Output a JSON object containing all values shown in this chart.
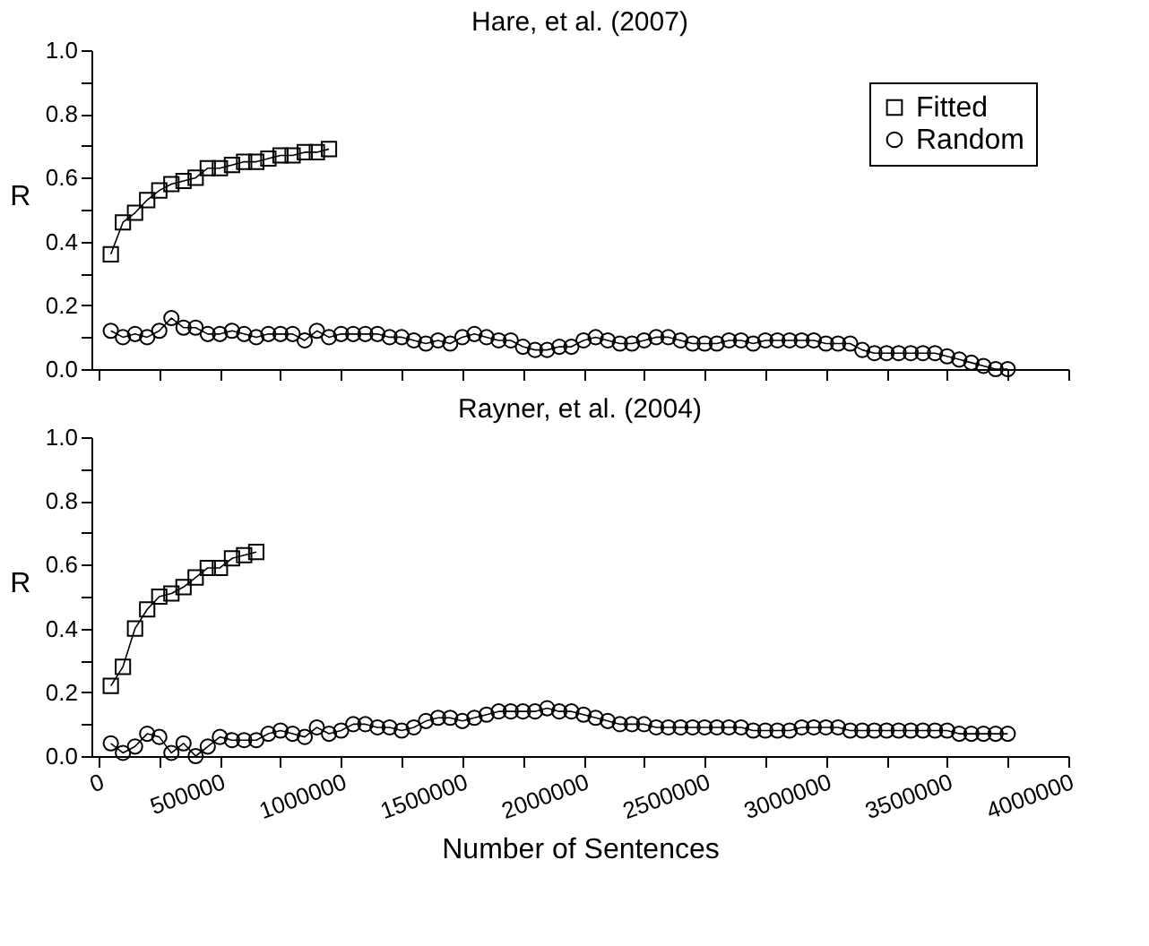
{
  "chart_data": [
    {
      "type": "line",
      "title": "Hare, et al. (2007)",
      "ylabel": "R",
      "tick_labels": "y",
      "legend": "top right",
      "grid": false,
      "line_style": "solid",
      "xlim": [
        -30000,
        4000000
      ],
      "xticks": [
        {
          "value": 0,
          "label": null
        },
        {
          "value": 250000,
          "label": null
        },
        {
          "value": 500000,
          "label": null
        },
        {
          "value": 750000,
          "label": null
        },
        {
          "value": 1000000,
          "label": null
        },
        {
          "value": 1250000,
          "label": null
        },
        {
          "value": 1500000,
          "label": null
        },
        {
          "value": 1750000,
          "label": null
        },
        {
          "value": 2000000,
          "label": null
        },
        {
          "value": 2250000,
          "label": null
        },
        {
          "value": 2500000,
          "label": null
        },
        {
          "value": 2750000,
          "label": null
        },
        {
          "value": 3000000,
          "label": null
        },
        {
          "value": 3250000,
          "label": null
        },
        {
          "value": 3500000,
          "label": null
        },
        {
          "value": 3750000,
          "label": null
        },
        {
          "value": 4000000,
          "label": null
        }
      ],
      "ylim": [
        0,
        1
      ],
      "yticks": [
        {
          "value": 0,
          "label": "0.0"
        },
        {
          "value": 0.1,
          "label": null
        },
        {
          "value": 0.2,
          "label": "0.2"
        },
        {
          "value": 0.3,
          "label": null
        },
        {
          "value": 0.4,
          "label": "0.4"
        },
        {
          "value": 0.5,
          "label": null
        },
        {
          "value": 0.6,
          "label": "0.6"
        },
        {
          "value": 0.7,
          "label": null
        },
        {
          "value": 0.8,
          "label": "0.8"
        },
        {
          "value": 0.9,
          "label": null
        },
        {
          "value": 1,
          "label": "1.0"
        }
      ],
      "series": [
        {
          "name": "Fitted",
          "color": "#000000",
          "marker": "square",
          "x": [
            50000,
            100000,
            150000,
            200000,
            250000,
            300000,
            350000,
            400000,
            450000,
            500000,
            550000,
            600000,
            650000,
            700000,
            750000,
            800000,
            850000,
            900000,
            950000
          ],
          "values": [
            0.36,
            0.46,
            0.49,
            0.53,
            0.56,
            0.58,
            0.59,
            0.6,
            0.63,
            0.63,
            0.64,
            0.65,
            0.65,
            0.66,
            0.67,
            0.67,
            0.68,
            0.68,
            0.69
          ]
        },
        {
          "name": "Random",
          "color": "#000000",
          "marker": "circle",
          "x": [
            50000,
            100000,
            150000,
            200000,
            250000,
            300000,
            350000,
            400000,
            450000,
            500000,
            550000,
            600000,
            650000,
            700000,
            750000,
            800000,
            850000,
            900000,
            950000,
            1000000,
            1050000,
            1100000,
            1150000,
            1200000,
            1250000,
            1300000,
            1350000,
            1400000,
            1450000,
            1500000,
            1550000,
            1600000,
            1650000,
            1700000,
            1750000,
            1800000,
            1850000,
            1900000,
            1950000,
            2000000,
            2050000,
            2100000,
            2150000,
            2200000,
            2250000,
            2300000,
            2350000,
            2400000,
            2450000,
            2500000,
            2550000,
            2600000,
            2650000,
            2700000,
            2750000,
            2800000,
            2850000,
            2900000,
            2950000,
            3000000,
            3050000,
            3100000,
            3150000,
            3200000,
            3250000,
            3300000,
            3350000,
            3400000,
            3450000,
            3500000,
            3550000,
            3600000,
            3650000,
            3700000,
            3750000
          ],
          "values": [
            0.12,
            0.1,
            0.11,
            0.1,
            0.12,
            0.16,
            0.13,
            0.13,
            0.11,
            0.11,
            0.12,
            0.11,
            0.1,
            0.11,
            0.11,
            0.11,
            0.09,
            0.12,
            0.1,
            0.11,
            0.11,
            0.11,
            0.11,
            0.1,
            0.1,
            0.09,
            0.08,
            0.09,
            0.08,
            0.1,
            0.11,
            0.1,
            0.09,
            0.09,
            0.07,
            0.06,
            0.06,
            0.07,
            0.07,
            0.09,
            0.1,
            0.09,
            0.08,
            0.08,
            0.09,
            0.1,
            0.1,
            0.09,
            0.08,
            0.08,
            0.08,
            0.09,
            0.09,
            0.08,
            0.09,
            0.09,
            0.09,
            0.09,
            0.09,
            0.08,
            0.08,
            0.08,
            0.06,
            0.05,
            0.05,
            0.05,
            0.05,
            0.05,
            0.05,
            0.04,
            0.03,
            0.02,
            0.01,
            0.0,
            0.0
          ]
        }
      ]
    },
    {
      "type": "line",
      "title": "Rayner, et al. (2004)",
      "ylabel": "R",
      "xlabel": "Number of Sentences",
      "grid": false,
      "line_style": "solid",
      "xlim": [
        -30000,
        4000000
      ],
      "xticks": [
        {
          "value": 0,
          "label": "0"
        },
        {
          "value": 250000,
          "label": null
        },
        {
          "value": 500000,
          "label": "500000"
        },
        {
          "value": 750000,
          "label": null
        },
        {
          "value": 1000000,
          "label": "1000000"
        },
        {
          "value": 1250000,
          "label": null
        },
        {
          "value": 1500000,
          "label": "1500000"
        },
        {
          "value": 1750000,
          "label": null
        },
        {
          "value": 2000000,
          "label": "2000000"
        },
        {
          "value": 2250000,
          "label": null
        },
        {
          "value": 2500000,
          "label": "2500000"
        },
        {
          "value": 2750000,
          "label": null
        },
        {
          "value": 3000000,
          "label": "3000000"
        },
        {
          "value": 3250000,
          "label": null
        },
        {
          "value": 3500000,
          "label": "3500000"
        },
        {
          "value": 3750000,
          "label": null
        },
        {
          "value": 4000000,
          "label": "4000000"
        }
      ],
      "ylim": [
        0,
        1
      ],
      "yticks": [
        {
          "value": 0,
          "label": "0.0"
        },
        {
          "value": 0.1,
          "label": null
        },
        {
          "value": 0.2,
          "label": "0.2"
        },
        {
          "value": 0.3,
          "label": null
        },
        {
          "value": 0.4,
          "label": "0.4"
        },
        {
          "value": 0.5,
          "label": null
        },
        {
          "value": 0.6,
          "label": "0.6"
        },
        {
          "value": 0.7,
          "label": null
        },
        {
          "value": 0.8,
          "label": "0.8"
        },
        {
          "value": 0.9,
          "label": null
        },
        {
          "value": 1,
          "label": "1.0"
        }
      ],
      "series": [
        {
          "color": "#000000",
          "marker": "square",
          "x": [
            50000,
            100000,
            150000,
            200000,
            250000,
            300000,
            350000,
            400000,
            450000,
            500000,
            550000,
            600000,
            650000
          ],
          "values": [
            0.22,
            0.28,
            0.4,
            0.46,
            0.5,
            0.51,
            0.53,
            0.56,
            0.59,
            0.59,
            0.62,
            0.63,
            0.64
          ]
        },
        {
          "color": "#000000",
          "marker": "circle",
          "x": [
            50000,
            100000,
            150000,
            200000,
            250000,
            300000,
            350000,
            400000,
            450000,
            500000,
            550000,
            600000,
            650000,
            700000,
            750000,
            800000,
            850000,
            900000,
            950000,
            1000000,
            1050000,
            1100000,
            1150000,
            1200000,
            1250000,
            1300000,
            1350000,
            1400000,
            1450000,
            1500000,
            1550000,
            1600000,
            1650000,
            1700000,
            1750000,
            1800000,
            1850000,
            1900000,
            1950000,
            2000000,
            2050000,
            2100000,
            2150000,
            2200000,
            2250000,
            2300000,
            2350000,
            2400000,
            2450000,
            2500000,
            2550000,
            2600000,
            2650000,
            2700000,
            2750000,
            2800000,
            2850000,
            2900000,
            2950000,
            3000000,
            3050000,
            3100000,
            3150000,
            3200000,
            3250000,
            3300000,
            3350000,
            3400000,
            3450000,
            3500000,
            3550000,
            3600000,
            3650000,
            3700000,
            3750000
          ],
          "values": [
            0.04,
            0.01,
            0.03,
            0.07,
            0.06,
            0.01,
            0.04,
            0.0,
            0.03,
            0.06,
            0.05,
            0.05,
            0.05,
            0.07,
            0.08,
            0.07,
            0.06,
            0.09,
            0.07,
            0.08,
            0.1,
            0.1,
            0.09,
            0.09,
            0.08,
            0.09,
            0.11,
            0.12,
            0.12,
            0.11,
            0.12,
            0.13,
            0.14,
            0.14,
            0.14,
            0.14,
            0.15,
            0.14,
            0.14,
            0.13,
            0.12,
            0.11,
            0.1,
            0.1,
            0.1,
            0.09,
            0.09,
            0.09,
            0.09,
            0.09,
            0.09,
            0.09,
            0.09,
            0.08,
            0.08,
            0.08,
            0.08,
            0.09,
            0.09,
            0.09,
            0.09,
            0.08,
            0.08,
            0.08,
            0.08,
            0.08,
            0.08,
            0.08,
            0.08,
            0.08,
            0.07,
            0.07,
            0.07,
            0.07,
            0.07
          ]
        }
      ]
    }
  ]
}
